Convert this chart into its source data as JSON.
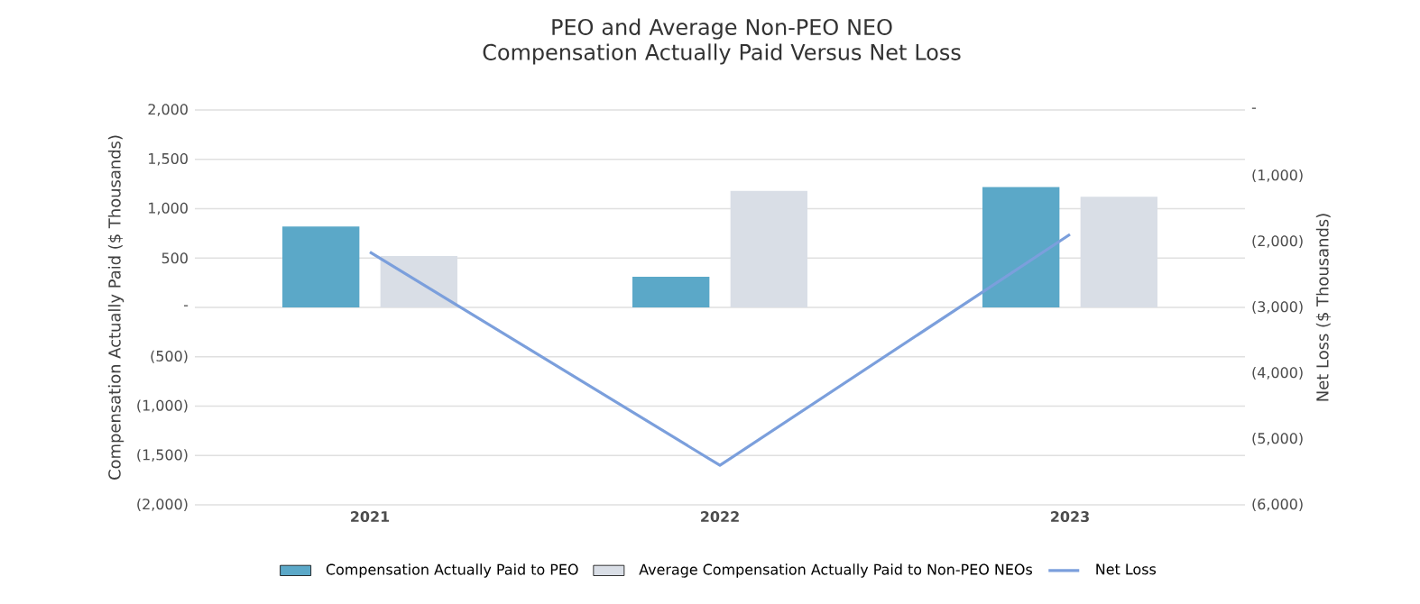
{
  "chart_data": {
    "type": "bar",
    "title": "PEO and Average Non-PEO NEO Compensation Actually Paid Versus Net Loss",
    "categories": [
      "2021",
      "2022",
      "2023"
    ],
    "series": [
      {
        "name": "Compensation Actually Paid to PEO",
        "color": "#5ba8c8",
        "values": [
          820,
          310,
          1220
        ]
      },
      {
        "name": "Average Compensation Actually Paid to Non-PEO NEOs",
        "color": "#d9dee6",
        "values": [
          520,
          1180,
          1120
        ]
      },
      {
        "name": "Net Loss",
        "type": "line",
        "axis": "y2",
        "color": "#7b9fdc",
        "values": [
          -2160,
          -5400,
          -1890
        ]
      }
    ],
    "ylabel": "Compensation Actually Paid ($ Thousands)",
    "y2label": "Net Loss ($ Thousands)",
    "ylim": [
      -2000,
      2000
    ],
    "yticks": [
      {
        "value": -2000,
        "label": "(2,000)"
      },
      {
        "value": -1500,
        "label": "(1,500)"
      },
      {
        "value": -1000,
        "label": "(1,000)"
      },
      {
        "value": -500,
        "label": "(500)"
      },
      {
        "value": 0,
        "label": "-"
      },
      500,
      {
        "value": 1000,
        "label": "1,000"
      },
      {
        "value": 1500,
        "label": "1,500"
      },
      {
        "value": 2000,
        "label": "2,000"
      }
    ],
    "y2lim": [
      -6000,
      0
    ],
    "y2ticks": [
      {
        "value": -6000,
        "label": "(6,000)"
      },
      {
        "value": -5000,
        "label": "(5,000)"
      },
      {
        "value": -4000,
        "label": "(4,000)"
      },
      {
        "value": -3000,
        "label": "(3,000)"
      },
      {
        "value": -2000,
        "label": "(2,000)"
      },
      {
        "value": -1000,
        "label": "(1,000)"
      },
      {
        "value": 0,
        "label": "-"
      }
    ],
    "grid": "y",
    "legend": "bottom"
  }
}
